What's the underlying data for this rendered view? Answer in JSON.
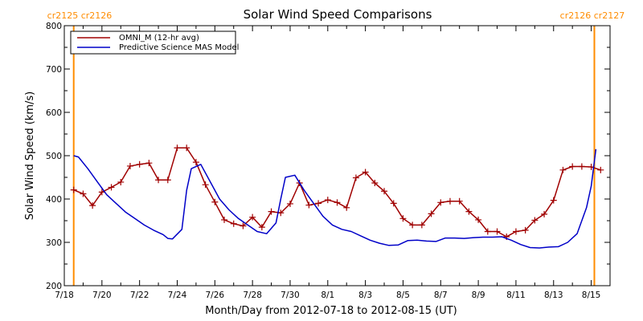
{
  "chart_data": {
    "type": "line",
    "title": "Solar Wind Speed Comparisons",
    "xlabel": "Month/Day from 2012-07-18 to 2012-08-15 (UT)",
    "ylabel": "Solar Wind Speed (km/s)",
    "xlim": [
      "2012-07-18",
      "2012-08-16"
    ],
    "ylim": [
      200,
      800
    ],
    "y_ticks": [
      200,
      300,
      400,
      500,
      600,
      700,
      800
    ],
    "x_ticks": [
      {
        "date": "2012-07-18",
        "label": "7/18"
      },
      {
        "date": "2012-07-20",
        "label": "7/20"
      },
      {
        "date": "2012-07-22",
        "label": "7/22"
      },
      {
        "date": "2012-07-24",
        "label": "7/24"
      },
      {
        "date": "2012-07-26",
        "label": "7/26"
      },
      {
        "date": "2012-07-28",
        "label": "7/28"
      },
      {
        "date": "2012-07-30",
        "label": "7/30"
      },
      {
        "date": "2012-08-01",
        "label": "8/1"
      },
      {
        "date": "2012-08-03",
        "label": "8/3"
      },
      {
        "date": "2012-08-05",
        "label": "8/5"
      },
      {
        "date": "2012-08-07",
        "label": "8/7"
      },
      {
        "date": "2012-08-09",
        "label": "8/9"
      },
      {
        "date": "2012-08-11",
        "label": "8/11"
      },
      {
        "date": "2012-08-13",
        "label": "8/13"
      },
      {
        "date": "2012-08-15",
        "label": "8/15"
      }
    ],
    "grid": false,
    "legend_position": "top-left",
    "series": [
      {
        "name": "OMNI_M (12-hr avg)",
        "color": "#a00000",
        "marker": "plus",
        "x": [
          "2012-07-18 12:00",
          "2012-07-19 00:00",
          "2012-07-19 12:00",
          "2012-07-20 00:00",
          "2012-07-20 12:00",
          "2012-07-21 00:00",
          "2012-07-21 12:00",
          "2012-07-22 00:00",
          "2012-07-22 12:00",
          "2012-07-23 00:00",
          "2012-07-23 12:00",
          "2012-07-24 00:00",
          "2012-07-24 12:00",
          "2012-07-25 00:00",
          "2012-07-25 12:00",
          "2012-07-26 00:00",
          "2012-07-26 12:00",
          "2012-07-27 00:00",
          "2012-07-27 12:00",
          "2012-07-28 00:00",
          "2012-07-28 12:00",
          "2012-07-29 00:00",
          "2012-07-29 12:00",
          "2012-07-30 00:00",
          "2012-07-30 12:00",
          "2012-07-31 00:00",
          "2012-07-31 12:00",
          "2012-08-01 00:00",
          "2012-08-01 12:00",
          "2012-08-02 00:00",
          "2012-08-02 12:00",
          "2012-08-03 00:00",
          "2012-08-03 12:00",
          "2012-08-04 00:00",
          "2012-08-04 12:00",
          "2012-08-05 00:00",
          "2012-08-05 12:00",
          "2012-08-06 00:00",
          "2012-08-06 12:00",
          "2012-08-07 00:00",
          "2012-08-07 12:00",
          "2012-08-08 00:00",
          "2012-08-08 12:00",
          "2012-08-09 00:00",
          "2012-08-09 12:00",
          "2012-08-10 00:00",
          "2012-08-10 12:00",
          "2012-08-11 00:00",
          "2012-08-11 12:00",
          "2012-08-12 00:00",
          "2012-08-12 12:00",
          "2012-08-13 00:00",
          "2012-08-13 12:00",
          "2012-08-14 00:00",
          "2012-08-14 12:00",
          "2012-08-15 00:00",
          "2012-08-15 12:00"
        ],
        "values": [
          421,
          412,
          385,
          416,
          427,
          439,
          476,
          480,
          483,
          444,
          444,
          518,
          518,
          485,
          433,
          393,
          352,
          343,
          338,
          358,
          335,
          371,
          368,
          389,
          437,
          386,
          390,
          398,
          392,
          380,
          449,
          462,
          437,
          418,
          390,
          355,
          340,
          340,
          366,
          392,
          395,
          395,
          371,
          352,
          325,
          325,
          313,
          325,
          328,
          351,
          365,
          397,
          467,
          475,
          475,
          474,
          467
        ]
      },
      {
        "name": "Predictive Science MAS Model",
        "color": "#0000c8",
        "marker": "none",
        "x": [
          "2012-07-18 12:00",
          "2012-07-18 18:00",
          "2012-07-19 06:00",
          "2012-07-19 18:00",
          "2012-07-20 06:00",
          "2012-07-20 18:00",
          "2012-07-21 06:00",
          "2012-07-21 18:00",
          "2012-07-22 06:00",
          "2012-07-22 18:00",
          "2012-07-23 06:00",
          "2012-07-23 12:00",
          "2012-07-23 18:00",
          "2012-07-24 06:00",
          "2012-07-24 12:00",
          "2012-07-24 18:00",
          "2012-07-25 06:00",
          "2012-07-25 18:00",
          "2012-07-26 06:00",
          "2012-07-26 18:00",
          "2012-07-27 06:00",
          "2012-07-27 18:00",
          "2012-07-28 06:00",
          "2012-07-28 18:00",
          "2012-07-29 06:00",
          "2012-07-29 12:00",
          "2012-07-29 18:00",
          "2012-07-30 06:00",
          "2012-07-30 18:00",
          "2012-07-31 06:00",
          "2012-07-31 18:00",
          "2012-08-01 06:00",
          "2012-08-01 18:00",
          "2012-08-02 06:00",
          "2012-08-02 18:00",
          "2012-08-03 06:00",
          "2012-08-03 18:00",
          "2012-08-04 06:00",
          "2012-08-04 18:00",
          "2012-08-05 06:00",
          "2012-08-05 18:00",
          "2012-08-06 06:00",
          "2012-08-06 18:00",
          "2012-08-07 06:00",
          "2012-08-07 18:00",
          "2012-08-08 06:00",
          "2012-08-08 18:00",
          "2012-08-09 06:00",
          "2012-08-09 18:00",
          "2012-08-10 06:00",
          "2012-08-10 18:00",
          "2012-08-11 06:00",
          "2012-08-11 18:00",
          "2012-08-12 06:00",
          "2012-08-12 18:00",
          "2012-08-13 06:00",
          "2012-08-13 18:00",
          "2012-08-14 06:00",
          "2012-08-14 18:00",
          "2012-08-15 00:00",
          "2012-08-15 06:00"
        ],
        "values": [
          500,
          497,
          470,
          440,
          410,
          390,
          370,
          355,
          340,
          328,
          318,
          309,
          308,
          330,
          420,
          470,
          480,
          440,
          400,
          375,
          355,
          340,
          325,
          320,
          345,
          400,
          450,
          455,
          420,
          390,
          360,
          340,
          330,
          325,
          315,
          305,
          298,
          293,
          294,
          304,
          305,
          303,
          302,
          310,
          310,
          309,
          311,
          312,
          312,
          313,
          305,
          295,
          288,
          287,
          289,
          290,
          300,
          320,
          380,
          430,
          515
        ]
      }
    ],
    "vertical_markers": [
      {
        "date": "2012-07-18 12:00",
        "color": "#ff8c00",
        "label": "cr2125 cr2126"
      },
      {
        "date": "2012-08-15 04:00",
        "color": "#ff8c00",
        "label": "cr2126 cr2127"
      }
    ]
  }
}
